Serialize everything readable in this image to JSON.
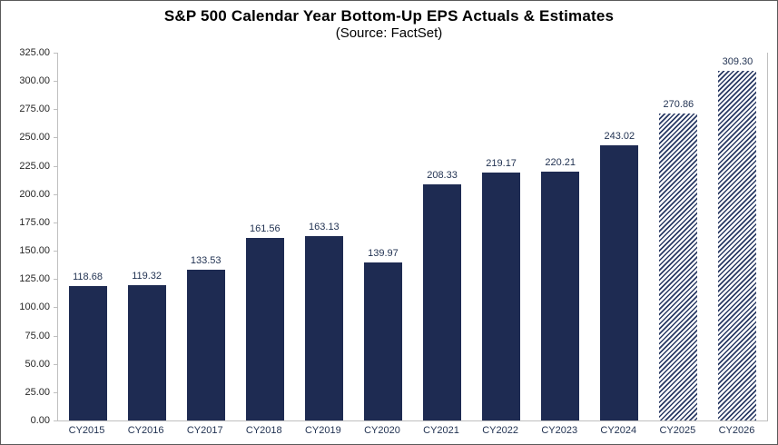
{
  "chart_data": {
    "type": "bar",
    "title": "S&P 500 Calendar Year Bottom-Up EPS Actuals & Estimates",
    "subtitle": "(Source: FactSet)",
    "categories": [
      "CY2015",
      "CY2016",
      "CY2017",
      "CY2018",
      "CY2019",
      "CY2020",
      "CY2021",
      "CY2022",
      "CY2023",
      "CY2024",
      "CY2025",
      "CY2026"
    ],
    "series": [
      {
        "name": "Bottom-Up EPS",
        "values": [
          118.68,
          119.32,
          133.53,
          161.56,
          163.13,
          139.97,
          208.33,
          219.17,
          220.21,
          243.02,
          270.86,
          309.3
        ]
      }
    ],
    "is_estimate": [
      false,
      false,
      false,
      false,
      false,
      false,
      false,
      false,
      false,
      false,
      true,
      true
    ],
    "ylim": [
      0,
      325
    ],
    "ytick_step": 25,
    "ytick_labels": [
      "0.00",
      "25.00",
      "50.00",
      "75.00",
      "100.00",
      "125.00",
      "150.00",
      "175.00",
      "200.00",
      "225.00",
      "250.00",
      "275.00",
      "300.00",
      "325.00"
    ],
    "grid": false,
    "legend_position": "none",
    "colors": {
      "actual_bar": "#1E2B52",
      "estimate_hatch_stripe": "#2A3A64",
      "estimate_hatch_background": "#FFFFFF",
      "axis_line": "#BFBFBF",
      "value_label": "#1F3050",
      "axis_tick_label": "#262626",
      "category_label": "#1F3050",
      "title_text": "#000000"
    }
  }
}
